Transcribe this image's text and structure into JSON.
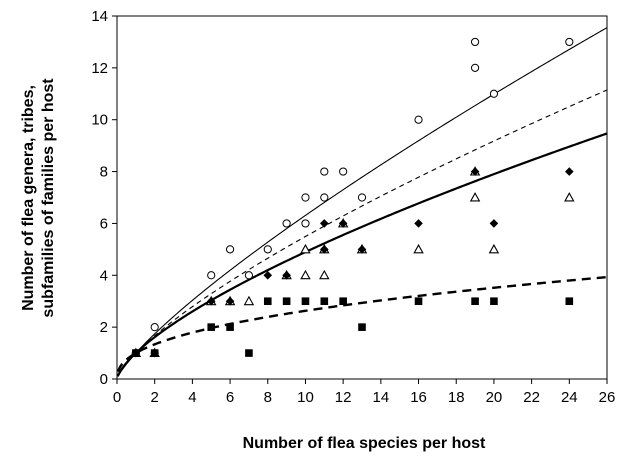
{
  "chart_data": {
    "type": "scatter",
    "title": "",
    "xlabel": "Number of flea species per host",
    "ylabel_lines": [
      "Number of flea genera, tribes,",
      "subfamilies of families per host"
    ],
    "xlim": [
      0,
      26
    ],
    "ylim": [
      0,
      14
    ],
    "x_ticks": [
      0,
      2,
      4,
      6,
      8,
      10,
      12,
      14,
      16,
      18,
      20,
      22,
      24,
      26
    ],
    "y_ticks": [
      0,
      2,
      4,
      6,
      8,
      10,
      12,
      14
    ],
    "grid": false,
    "legend": "none",
    "series": [
      {
        "marker": "open-circle",
        "points": [
          [
            1,
            1
          ],
          [
            2,
            2
          ],
          [
            5,
            4
          ],
          [
            6,
            5
          ],
          [
            7,
            4
          ],
          [
            8,
            5
          ],
          [
            9,
            6
          ],
          [
            10,
            6
          ],
          [
            10,
            7
          ],
          [
            11,
            7
          ],
          [
            11,
            8
          ],
          [
            12,
            8
          ],
          [
            13,
            7
          ],
          [
            16,
            10
          ],
          [
            19,
            12
          ],
          [
            19,
            13
          ],
          [
            20,
            11
          ],
          [
            24,
            13
          ]
        ]
      },
      {
        "marker": "open-triangle",
        "points": [
          [
            1,
            1
          ],
          [
            2,
            1
          ],
          [
            5,
            3
          ],
          [
            6,
            3
          ],
          [
            7,
            3
          ],
          [
            9,
            4
          ],
          [
            10,
            4
          ],
          [
            10,
            5
          ],
          [
            11,
            4
          ],
          [
            11,
            5
          ],
          [
            12,
            6
          ],
          [
            13,
            5
          ],
          [
            16,
            5
          ],
          [
            19,
            7
          ],
          [
            19,
            8
          ],
          [
            20,
            5
          ],
          [
            24,
            7
          ]
        ]
      },
      {
        "marker": "filled-diamond",
        "points": [
          [
            1,
            1
          ],
          [
            2,
            1
          ],
          [
            5,
            3
          ],
          [
            6,
            3
          ],
          [
            8,
            4
          ],
          [
            9,
            4
          ],
          [
            11,
            5
          ],
          [
            11,
            6
          ],
          [
            12,
            6
          ],
          [
            13,
            5
          ],
          [
            16,
            6
          ],
          [
            19,
            8
          ],
          [
            20,
            6
          ],
          [
            24,
            8
          ]
        ]
      },
      {
        "marker": "filled-square",
        "points": [
          [
            1,
            1
          ],
          [
            2,
            1
          ],
          [
            5,
            2
          ],
          [
            6,
            2
          ],
          [
            7,
            1
          ],
          [
            8,
            3
          ],
          [
            9,
            3
          ],
          [
            10,
            3
          ],
          [
            11,
            3
          ],
          [
            12,
            3
          ],
          [
            13,
            2
          ],
          [
            16,
            3
          ],
          [
            19,
            3
          ],
          [
            20,
            3
          ],
          [
            24,
            3
          ]
        ]
      }
    ],
    "fits": [
      {
        "style": "thin-solid",
        "a": 1.0,
        "b": 0.8
      },
      {
        "style": "thin-dashed",
        "a": 1.0,
        "b": 0.74
      },
      {
        "style": "thick-solid",
        "a": 1.0,
        "b": 0.69
      },
      {
        "style": "thick-dashed",
        "a": 1.0,
        "b": 0.42
      }
    ]
  }
}
